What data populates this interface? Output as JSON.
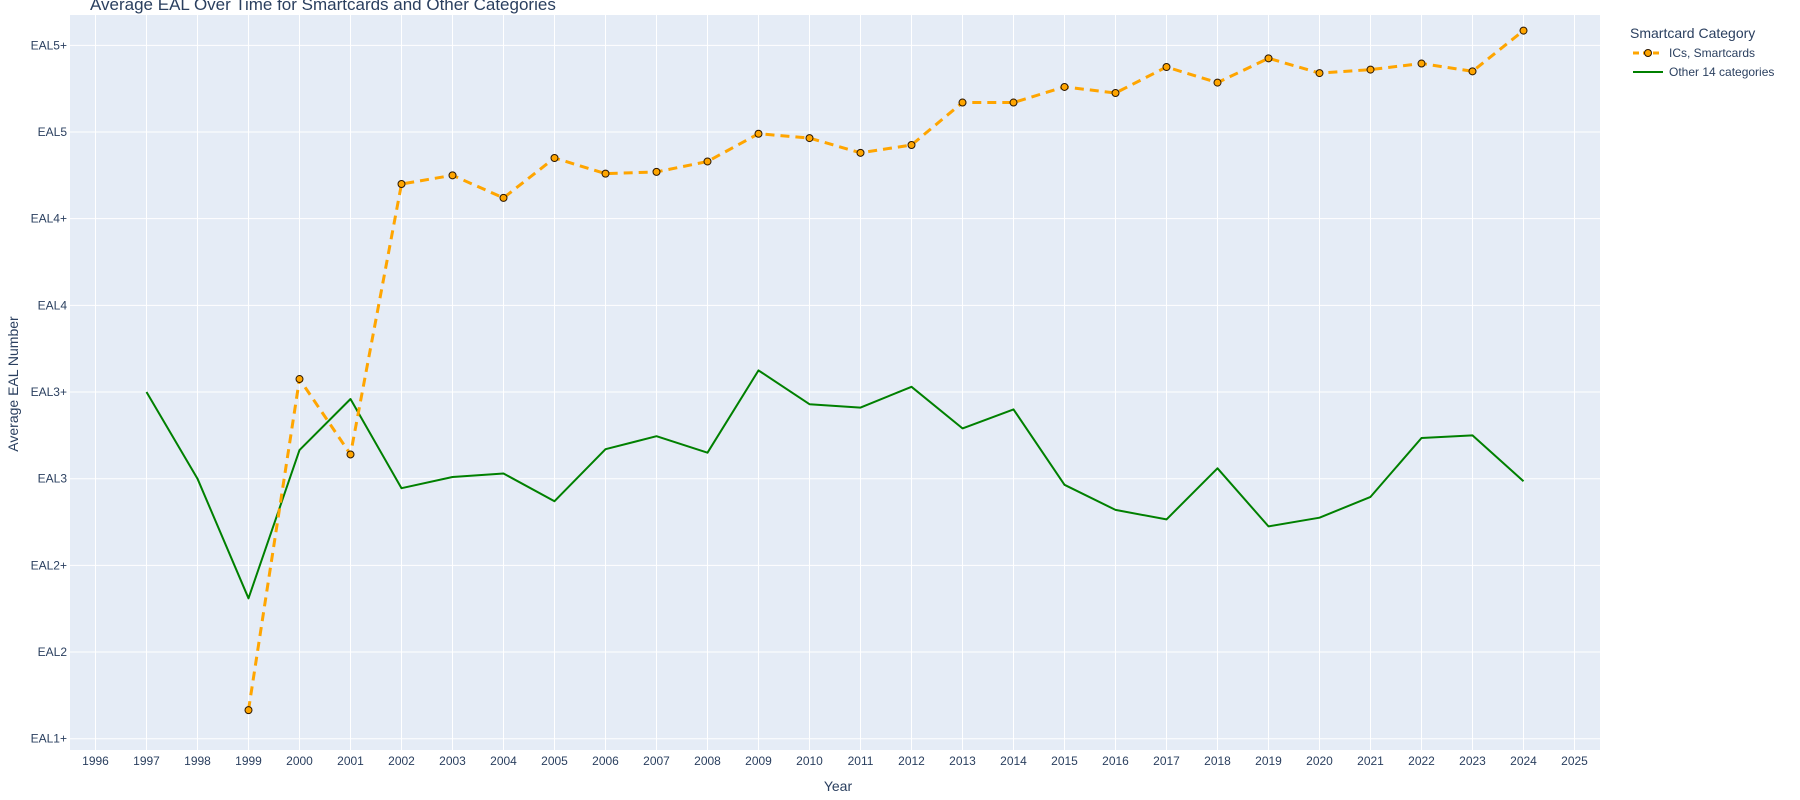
{
  "chart_data": {
    "type": "line",
    "title": "Average EAL Over Time for Smartcards and Other Categories",
    "xlabel": "Year",
    "ylabel": "Average EAL Number",
    "xlim": [
      1995.5,
      2025.5
    ],
    "ylim": [
      1.9,
      9.2
    ],
    "x_ticks": [
      1996,
      1997,
      1998,
      1999,
      2000,
      2001,
      2002,
      2003,
      2004,
      2005,
      2006,
      2007,
      2008,
      2009,
      2010,
      2011,
      2012,
      2013,
      2014,
      2015,
      2016,
      2017,
      2018,
      2019,
      2020,
      2021,
      2022,
      2023,
      2024,
      2025
    ],
    "y_ticks": [
      {
        "value": 2,
        "label": "EAL1+"
      },
      {
        "value": 3,
        "label": "EAL2"
      },
      {
        "value": 4,
        "label": "EAL2+"
      },
      {
        "value": 5,
        "label": "EAL3"
      },
      {
        "value": 6,
        "label": "EAL3+"
      },
      {
        "value": 7,
        "label": "EAL4"
      },
      {
        "value": 8,
        "label": "EAL4+"
      },
      {
        "value": 9,
        "label": "EAL5"
      },
      {
        "value": 10,
        "label": "EAL5+"
      }
    ],
    "grid": true,
    "legend": {
      "title": "Smartcard Category",
      "position": "top-right"
    },
    "series": [
      {
        "name": "ICs, Smartcards",
        "color": "#FFA500",
        "style": "dashed-markers",
        "x": [
          1999,
          2000,
          2001,
          2002,
          2003,
          2004,
          2005,
          2006,
          2007,
          2008,
          2009,
          2010,
          2011,
          2012,
          2013,
          2014,
          2015,
          2016,
          2017,
          2018,
          2019,
          2020,
          2021,
          2022,
          2023,
          2024
        ],
        "y": [
          2.33,
          6.15,
          5.28,
          8.4,
          8.5,
          8.24,
          8.7,
          8.52,
          8.54,
          8.66,
          8.98,
          8.93,
          8.76,
          8.85,
          9.34,
          9.34,
          9.52,
          9.45,
          9.75,
          9.57,
          9.85,
          9.68,
          9.72,
          9.79,
          9.7,
          10.17
        ]
      },
      {
        "name": "Other 14 categories",
        "color": "#008000",
        "style": "solid",
        "x": [
          1997,
          1998,
          1999,
          2000,
          2001,
          2002,
          2003,
          2004,
          2005,
          2006,
          2007,
          2008,
          2009,
          2010,
          2011,
          2012,
          2013,
          2014,
          2015,
          2016,
          2017,
          2018,
          2019,
          2020,
          2021,
          2022,
          2023,
          2024
        ],
        "y": [
          6.0,
          5.0,
          3.62,
          5.33,
          5.92,
          4.89,
          5.02,
          5.06,
          4.74,
          5.34,
          5.49,
          5.3,
          6.25,
          5.86,
          5.82,
          6.06,
          5.58,
          5.8,
          4.93,
          4.64,
          4.53,
          5.12,
          4.45,
          4.55,
          4.79,
          5.47,
          5.5,
          4.97
        ]
      }
    ]
  }
}
